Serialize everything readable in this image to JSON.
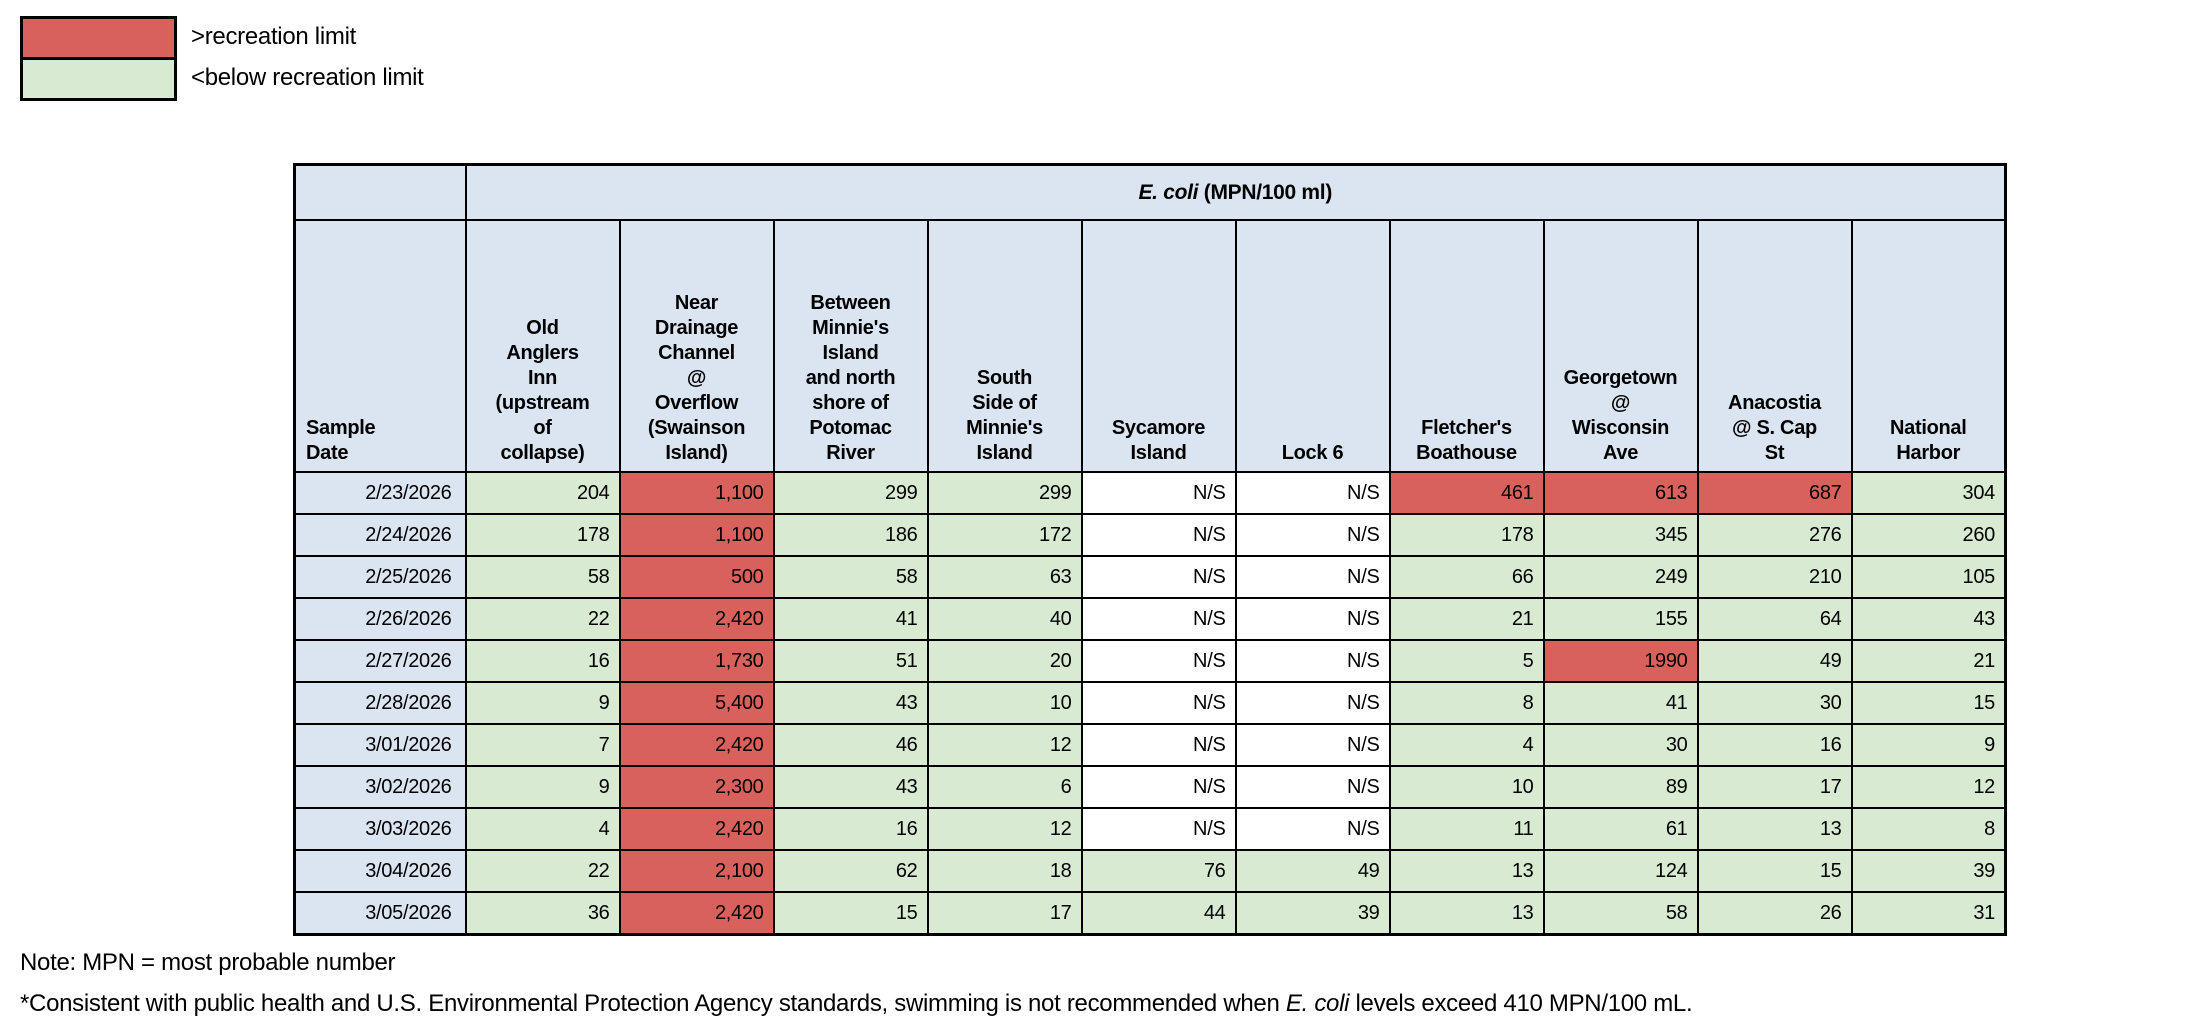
{
  "colors": {
    "above_limit": "#d9615c",
    "below_limit": "#d9ead3",
    "header_blue": "#dbe5f1",
    "no_sample": "#ffffff",
    "border": "#000000"
  },
  "legend": {
    "items": [
      {
        "name": "above-recreation-limit",
        "label": ">recreation limit",
        "color": "#d9615c"
      },
      {
        "name": "below-recreation-limit",
        "label": "<below recreation limit",
        "color": "#d9ead3"
      }
    ]
  },
  "table": {
    "title_italic": "E. coli",
    "title_rest": " (MPN/100 ml)",
    "row_header": "Sample\nDate",
    "columns": [
      {
        "label": "Old\nAnglers\nInn\n(upstream\nof\ncollapse)"
      },
      {
        "label": "Near\nDrainage\nChannel\n@\nOverflow\n(Swainson\nIsland)"
      },
      {
        "label": "Between\nMinnie's\nIsland\nand north\nshore of\nPotomac\nRiver"
      },
      {
        "label": "South\nSide of\nMinnie's\nIsland"
      },
      {
        "label": "Sycamore\nIsland"
      },
      {
        "label": "Lock 6"
      },
      {
        "label": "Fletcher's\nBoathouse"
      },
      {
        "label": "Georgetown\n@\nWisconsin\nAve"
      },
      {
        "label": "Anacostia\n@ S. Cap\nSt"
      },
      {
        "label": "National\nHarbor"
      }
    ],
    "rows": [
      {
        "date": "2/23/2026",
        "values": [
          "204",
          "1,100",
          "299",
          "299",
          "N/S",
          "N/S",
          "461",
          "613",
          "687",
          "304"
        ],
        "status": [
          "below",
          "above",
          "below",
          "below",
          "ns",
          "ns",
          "above",
          "above",
          "above",
          "below"
        ]
      },
      {
        "date": "2/24/2026",
        "values": [
          "178",
          "1,100",
          "186",
          "172",
          "N/S",
          "N/S",
          "178",
          "345",
          "276",
          "260"
        ],
        "status": [
          "below",
          "above",
          "below",
          "below",
          "ns",
          "ns",
          "below",
          "below",
          "below",
          "below"
        ]
      },
      {
        "date": "2/25/2026",
        "values": [
          "58",
          "500",
          "58",
          "63",
          "N/S",
          "N/S",
          "66",
          "249",
          "210",
          "105"
        ],
        "status": [
          "below",
          "above",
          "below",
          "below",
          "ns",
          "ns",
          "below",
          "below",
          "below",
          "below"
        ]
      },
      {
        "date": "2/26/2026",
        "values": [
          "22",
          "2,420",
          "41",
          "40",
          "N/S",
          "N/S",
          "21",
          "155",
          "64",
          "43"
        ],
        "status": [
          "below",
          "above",
          "below",
          "below",
          "ns",
          "ns",
          "below",
          "below",
          "below",
          "below"
        ]
      },
      {
        "date": "2/27/2026",
        "values": [
          "16",
          "1,730",
          "51",
          "20",
          "N/S",
          "N/S",
          "5",
          "1990",
          "49",
          "21"
        ],
        "status": [
          "below",
          "above",
          "below",
          "below",
          "ns",
          "ns",
          "below",
          "above",
          "below",
          "below"
        ]
      },
      {
        "date": "2/28/2026",
        "values": [
          "9",
          "5,400",
          "43",
          "10",
          "N/S",
          "N/S",
          "8",
          "41",
          "30",
          "15"
        ],
        "status": [
          "below",
          "above",
          "below",
          "below",
          "ns",
          "ns",
          "below",
          "below",
          "below",
          "below"
        ]
      },
      {
        "date": "3/01/2026",
        "values": [
          "7",
          "2,420",
          "46",
          "12",
          "N/S",
          "N/S",
          "4",
          "30",
          "16",
          "9"
        ],
        "status": [
          "below",
          "above",
          "below",
          "below",
          "ns",
          "ns",
          "below",
          "below",
          "below",
          "below"
        ]
      },
      {
        "date": "3/02/2026",
        "values": [
          "9",
          "2,300",
          "43",
          "6",
          "N/S",
          "N/S",
          "10",
          "89",
          "17",
          "12"
        ],
        "status": [
          "below",
          "above",
          "below",
          "below",
          "ns",
          "ns",
          "below",
          "below",
          "below",
          "below"
        ]
      },
      {
        "date": "3/03/2026",
        "values": [
          "4",
          "2,420",
          "16",
          "12",
          "N/S",
          "N/S",
          "11",
          "61",
          "13",
          "8"
        ],
        "status": [
          "below",
          "above",
          "below",
          "below",
          "ns",
          "ns",
          "below",
          "below",
          "below",
          "below"
        ]
      },
      {
        "date": "3/04/2026",
        "values": [
          "22",
          "2,100",
          "62",
          "18",
          "76",
          "49",
          "13",
          "124",
          "15",
          "39"
        ],
        "status": [
          "below",
          "above",
          "below",
          "below",
          "below",
          "below",
          "below",
          "below",
          "below",
          "below"
        ]
      },
      {
        "date": "3/05/2026",
        "values": [
          "36",
          "2,420",
          "15",
          "17",
          "44",
          "39",
          "13",
          "58",
          "26",
          "31"
        ],
        "status": [
          "below",
          "above",
          "below",
          "below",
          "below",
          "below",
          "below",
          "below",
          "below",
          "below"
        ]
      }
    ]
  },
  "notes": {
    "line1": "Note: MPN = most probable number",
    "line2_prefix": "*Consistent with public health and U.S. Environmental Protection Agency standards, swimming is not recommended when ",
    "line2_italic": "E. coli",
    "line2_suffix": " levels exceed 410 MPN/100 mL."
  }
}
